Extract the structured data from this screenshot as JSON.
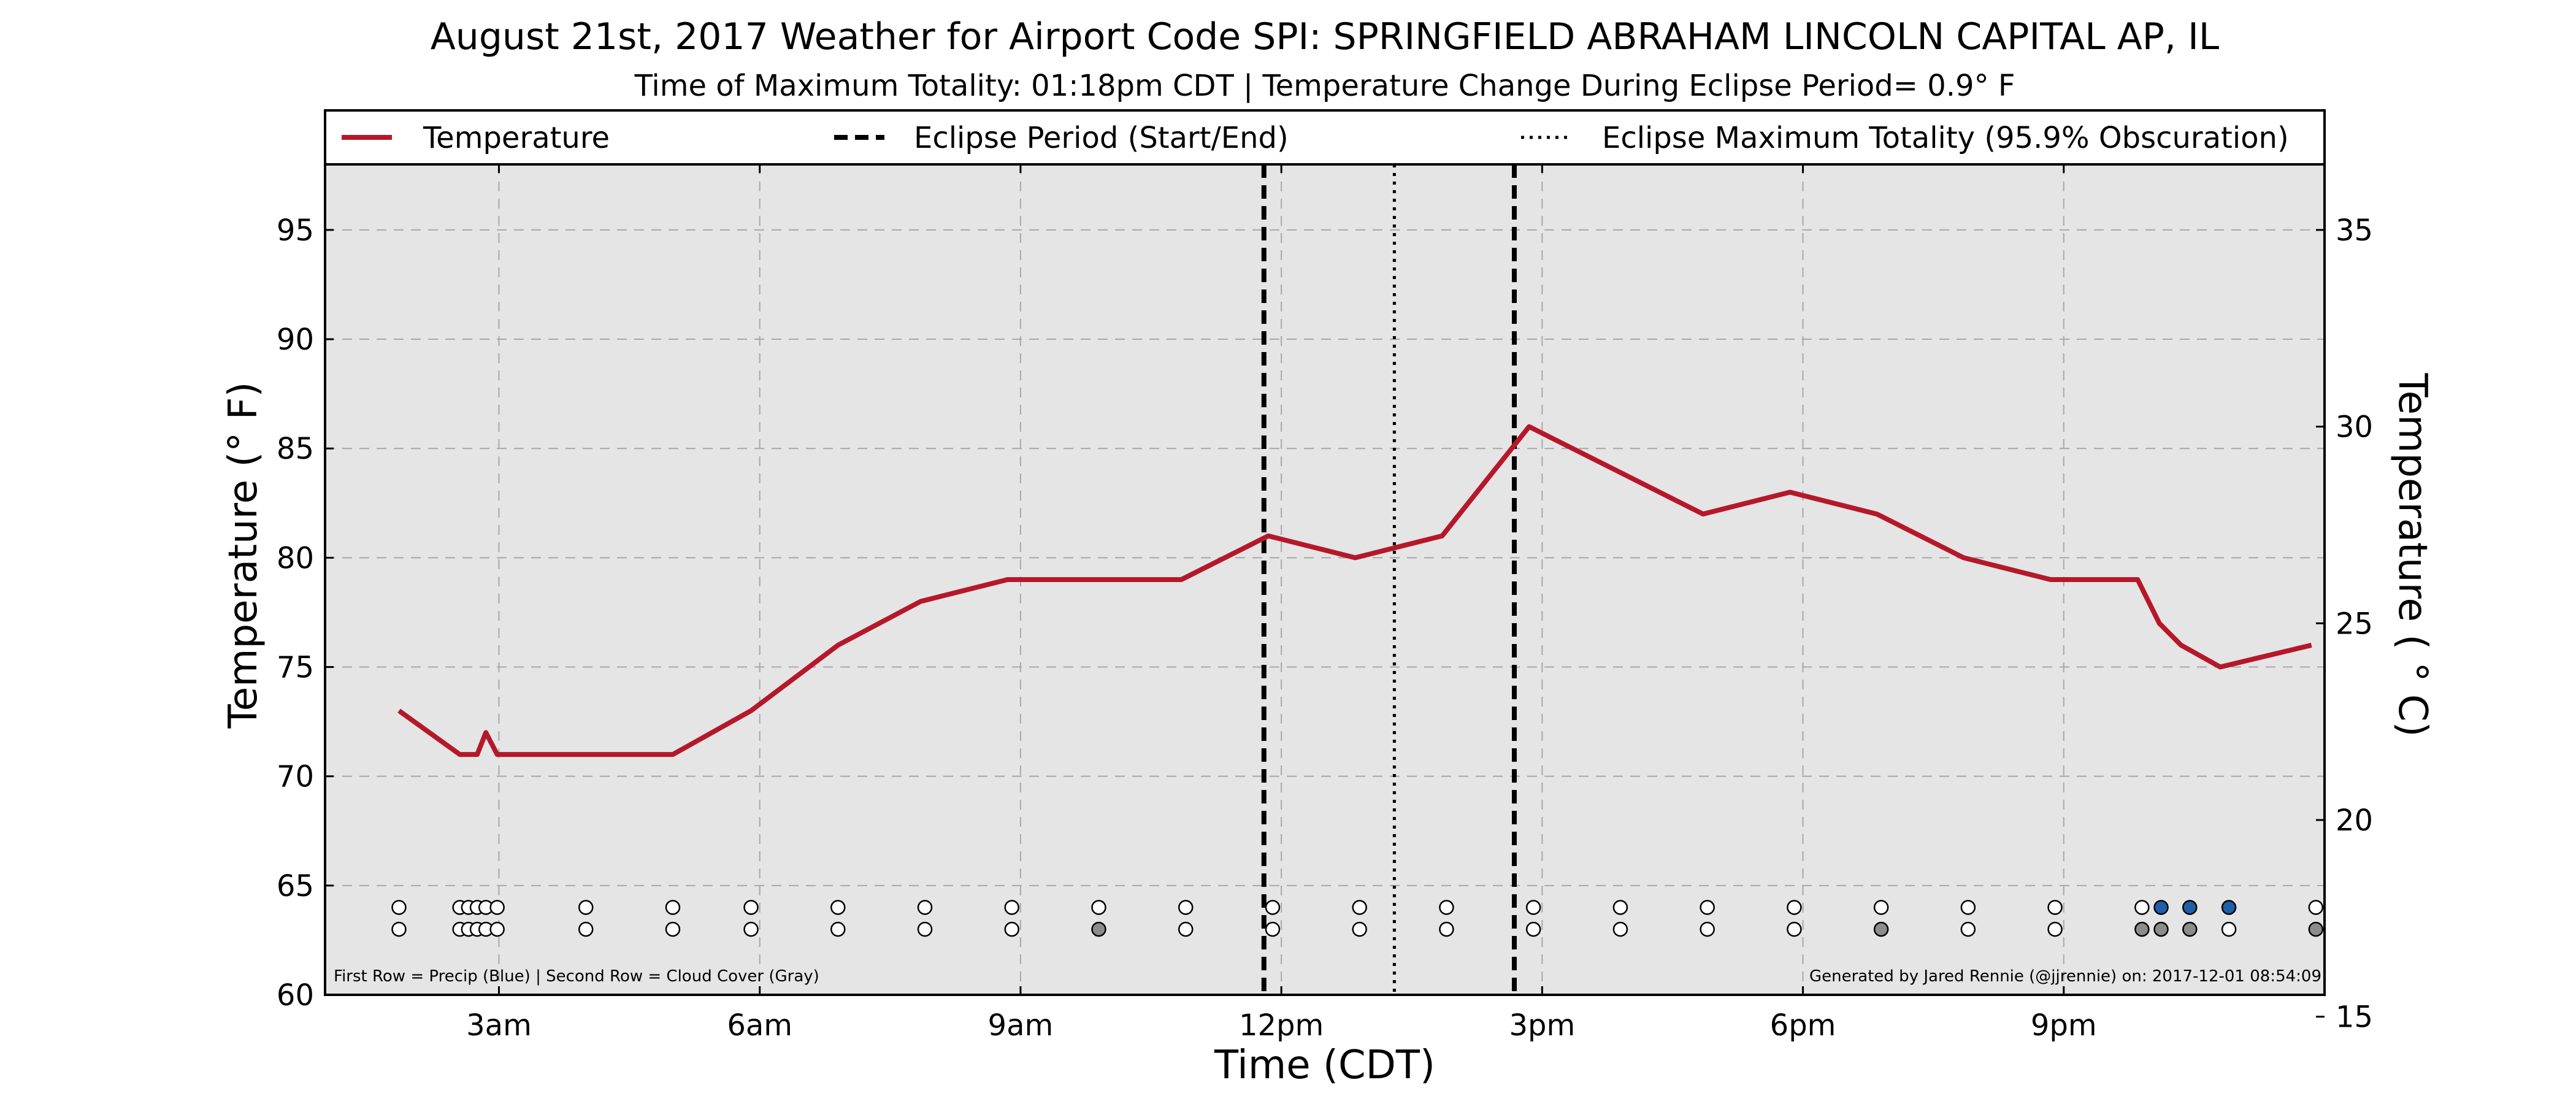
{
  "chart_data": {
    "type": "line",
    "title": "August 21st, 2017 Weather for Airport Code SPI: SPRINGFIELD ABRAHAM LINCOLN CAPITAL AP, IL",
    "subtitle": "Time of Maximum Totality: 01:18pm CDT | Temperature Change During Eclipse Period= 0.9° F",
    "xlabel": "Time (CDT)",
    "ylabel": "Temperature (° F)",
    "ylabel_right": "Temperature ( ° C)",
    "x_unit": "hours (CDT)",
    "xlim": [
      1.0,
      24.0
    ],
    "ylim": [
      60,
      98
    ],
    "ylim_right": [
      15.56,
      36.67
    ],
    "x_ticks": [
      3,
      6,
      9,
      12,
      15,
      18,
      21
    ],
    "x_tick_labels": [
      "3am",
      "6am",
      "9am",
      "12pm",
      "3pm",
      "6pm",
      "9pm"
    ],
    "y_ticks": [
      60,
      65,
      70,
      75,
      80,
      85,
      90,
      95
    ],
    "y_tick_labels": [
      "60",
      "65",
      "70",
      "75",
      "80",
      "85",
      "90",
      "95"
    ],
    "y_right_ticks": [
      15,
      20,
      25,
      30,
      35
    ],
    "y_right_tick_labels": [
      "15",
      "20",
      "25",
      "30",
      "35"
    ],
    "grid": true,
    "legend_placement": "top",
    "legend": [
      {
        "label": "Temperature",
        "style": "solid",
        "color": "#b5182a"
      },
      {
        "label": "Eclipse Period (Start/End)",
        "style": "dashed",
        "color": "#000000"
      },
      {
        "label": "Eclipse Maximum Totality (95.9% Obscuration)",
        "style": "dotted",
        "color": "#000000"
      }
    ],
    "series": [
      {
        "name": "Temperature",
        "color": "#b5182a",
        "x": [
          1.85,
          2.55,
          2.75,
          2.85,
          2.98,
          4.0,
          5.0,
          5.9,
          6.9,
          7.85,
          8.85,
          9.85,
          10.85,
          11.85,
          12.85,
          13.85,
          14.85,
          15.85,
          16.85,
          17.85,
          18.85,
          19.85,
          20.85,
          21.85,
          22.1,
          22.35,
          22.8,
          23.85
        ],
        "y": [
          73,
          71,
          71,
          72,
          71,
          71,
          71,
          73,
          76,
          78,
          79,
          79,
          79,
          81,
          80,
          81,
          86,
          84,
          82,
          83,
          82,
          80,
          79,
          79,
          77,
          76,
          75,
          76
        ]
      }
    ],
    "eclipse_start": 11.8,
    "eclipse_end": 14.68,
    "eclipse_max": 13.3,
    "precip_label": "First Row = Precip (Blue) | Second Row = Cloud Cover (Gray)",
    "generated_label": "Generated by Jared Rennie (@jjrennie) on: 2017-12-01 08:54:09",
    "marker_colors": {
      "none": "#ffffff",
      "gray": "#8c8c8c",
      "blue": "#1f5fa8"
    },
    "precip_row": [
      {
        "x": 1.85,
        "c": "none"
      },
      {
        "x": 2.55,
        "c": "none"
      },
      {
        "x": 2.65,
        "c": "none"
      },
      {
        "x": 2.75,
        "c": "none"
      },
      {
        "x": 2.85,
        "c": "none"
      },
      {
        "x": 2.98,
        "c": "none"
      },
      {
        "x": 4.0,
        "c": "none"
      },
      {
        "x": 5.0,
        "c": "none"
      },
      {
        "x": 5.9,
        "c": "none"
      },
      {
        "x": 6.9,
        "c": "none"
      },
      {
        "x": 7.9,
        "c": "none"
      },
      {
        "x": 8.9,
        "c": "none"
      },
      {
        "x": 9.9,
        "c": "none"
      },
      {
        "x": 10.9,
        "c": "none"
      },
      {
        "x": 11.9,
        "c": "none"
      },
      {
        "x": 12.9,
        "c": "none"
      },
      {
        "x": 13.9,
        "c": "none"
      },
      {
        "x": 14.9,
        "c": "none"
      },
      {
        "x": 15.9,
        "c": "none"
      },
      {
        "x": 16.9,
        "c": "none"
      },
      {
        "x": 17.9,
        "c": "none"
      },
      {
        "x": 18.9,
        "c": "none"
      },
      {
        "x": 19.9,
        "c": "none"
      },
      {
        "x": 20.9,
        "c": "none"
      },
      {
        "x": 21.9,
        "c": "none"
      },
      {
        "x": 22.12,
        "c": "blue"
      },
      {
        "x": 22.45,
        "c": "blue"
      },
      {
        "x": 22.9,
        "c": "blue"
      },
      {
        "x": 23.9,
        "c": "none"
      }
    ],
    "cloud_row": [
      {
        "x": 1.85,
        "c": "none"
      },
      {
        "x": 2.55,
        "c": "none"
      },
      {
        "x": 2.65,
        "c": "none"
      },
      {
        "x": 2.75,
        "c": "none"
      },
      {
        "x": 2.85,
        "c": "none"
      },
      {
        "x": 2.98,
        "c": "none"
      },
      {
        "x": 4.0,
        "c": "none"
      },
      {
        "x": 5.0,
        "c": "none"
      },
      {
        "x": 5.9,
        "c": "none"
      },
      {
        "x": 6.9,
        "c": "none"
      },
      {
        "x": 7.9,
        "c": "none"
      },
      {
        "x": 8.9,
        "c": "none"
      },
      {
        "x": 9.9,
        "c": "gray"
      },
      {
        "x": 10.9,
        "c": "none"
      },
      {
        "x": 11.9,
        "c": "none"
      },
      {
        "x": 12.9,
        "c": "none"
      },
      {
        "x": 13.9,
        "c": "none"
      },
      {
        "x": 14.9,
        "c": "none"
      },
      {
        "x": 15.9,
        "c": "none"
      },
      {
        "x": 16.9,
        "c": "none"
      },
      {
        "x": 17.9,
        "c": "none"
      },
      {
        "x": 18.9,
        "c": "gray"
      },
      {
        "x": 19.9,
        "c": "none"
      },
      {
        "x": 20.9,
        "c": "none"
      },
      {
        "x": 21.9,
        "c": "gray"
      },
      {
        "x": 22.12,
        "c": "gray"
      },
      {
        "x": 22.45,
        "c": "gray"
      },
      {
        "x": 22.9,
        "c": "none"
      },
      {
        "x": 23.9,
        "c": "gray"
      }
    ]
  }
}
